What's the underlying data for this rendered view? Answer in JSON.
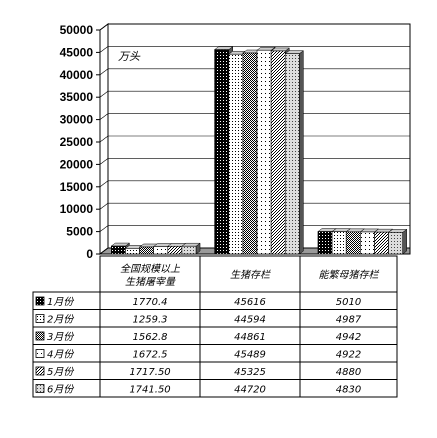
{
  "chart_data": {
    "type": "bar",
    "title": "",
    "unit_label": "万头",
    "ylim": [
      0,
      50000
    ],
    "yticks": [
      0,
      5000,
      10000,
      15000,
      20000,
      25000,
      30000,
      35000,
      40000,
      45000,
      50000
    ],
    "categories": [
      "全国规模以上生猪屠宰量",
      "生猪存栏",
      "能繁母猪存栏"
    ],
    "series": [
      {
        "name": "1月份",
        "values": [
          1770.4,
          45616,
          5010
        ],
        "display": [
          "1770.4",
          "45616",
          "5010"
        ],
        "color": "#111111"
      },
      {
        "name": "2月份",
        "values": [
          1259.3,
          44594,
          4987
        ],
        "display": [
          "1259.3",
          "44594",
          "4987"
        ],
        "color": "#ffffff"
      },
      {
        "name": "3月份",
        "values": [
          1562.8,
          44861,
          4942
        ],
        "display": [
          "1562.8",
          "44861",
          "4942"
        ],
        "color": "#333333"
      },
      {
        "name": "4月份",
        "values": [
          1672.5,
          45489,
          4922
        ],
        "display": [
          "1672.5",
          "45489",
          "4922"
        ],
        "color": "#f4f4f4"
      },
      {
        "name": "5月份",
        "values": [
          1717.5,
          45325,
          4880
        ],
        "display": [
          "1717.50",
          "45325",
          "4880"
        ],
        "color": "#666666"
      },
      {
        "name": "6月份",
        "values": [
          1741.5,
          44720,
          4830
        ],
        "display": [
          "1741.50",
          "44720",
          "4830"
        ],
        "color": "#aaaaaa"
      }
    ]
  }
}
